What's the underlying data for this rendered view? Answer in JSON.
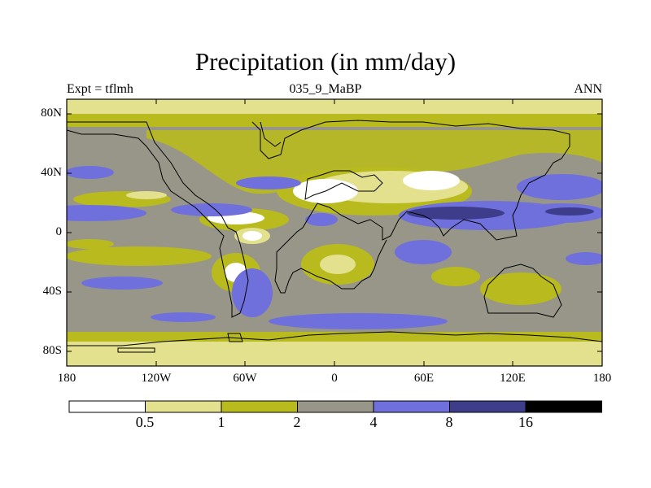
{
  "title": "Precipitation (in mm/day)",
  "left_label": "Expt = tflmh",
  "center_label": "035_9_MaBP",
  "right_label": "ANN",
  "lon_ticks": [
    "180",
    "120W",
    "60W",
    "0",
    "60E",
    "120E",
    "180"
  ],
  "lat_ticks": [
    "80N",
    "40N",
    "0",
    "40S",
    "80S"
  ],
  "colorbar": {
    "colors": [
      "#ffffff",
      "#e3e18d",
      "#b9ba1e",
      "#979688",
      "#7070dd",
      "#3d3d8c",
      "#000000"
    ],
    "labels": [
      "0.5",
      "1",
      "2",
      "4",
      "8",
      "16"
    ]
  }
}
